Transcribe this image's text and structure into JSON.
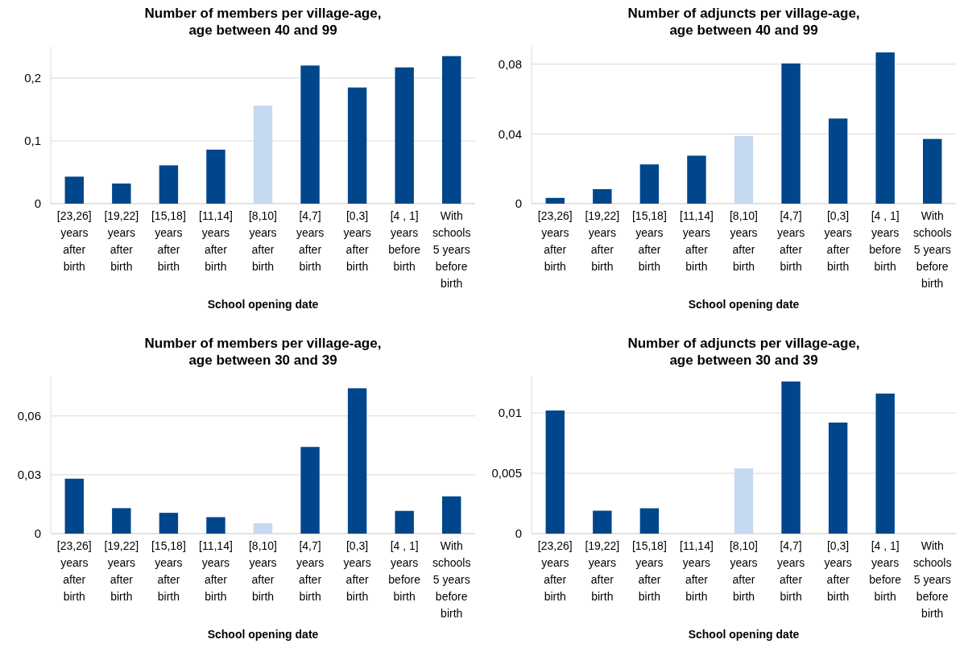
{
  "chart_data": [
    {
      "type": "bar",
      "title": "Number of members per village-age, age between 40 and 99",
      "xlabel": "School opening date",
      "categories": [
        "[23,26] years after birth",
        "[19,22] years after birth",
        "[15,18] years after birth",
        "[11,14] years after birth",
        "[8,10] years after birth",
        "[4,7] years after birth",
        "[0,3] years after birth",
        "[4 , 1] years before birth",
        "With schools 5 years before birth"
      ],
      "values": [
        0.043,
        0.032,
        0.061,
        0.086,
        0.156,
        0.22,
        0.185,
        0.217,
        0.235
      ],
      "colors": [
        "#00468b",
        "#00468b",
        "#00468b",
        "#00468b",
        "#c5d9f1",
        "#00468b",
        "#00468b",
        "#00468b",
        "#00468b"
      ],
      "ylim": [
        0,
        0.25
      ],
      "yticks": [
        {
          "value": 0,
          "label": "0"
        },
        {
          "value": 0.1,
          "label": "0,1"
        },
        {
          "value": 0.2,
          "label": "0,2"
        }
      ],
      "grid": "y"
    },
    {
      "type": "bar",
      "title": "Number of adjuncts per village-age, age between 40 and 99",
      "xlabel": "School opening date",
      "categories": [
        "[23,26] years after birth",
        "[19,22] years after birth",
        "[15,18] years after birth",
        "[11,14] years after birth",
        "[8,10] years after birth",
        "[4,7] years after birth",
        "[0,3] years after birth",
        "[4 , 1] years before birth",
        "With schools 5 years before birth"
      ],
      "values": [
        0.0033,
        0.0083,
        0.0225,
        0.0275,
        0.0388,
        0.0804,
        0.0488,
        0.0867,
        0.0371
      ],
      "colors": [
        "#00468b",
        "#00468b",
        "#00468b",
        "#00468b",
        "#c5d9f1",
        "#00468b",
        "#00468b",
        "#00468b",
        "#00468b"
      ],
      "ylim": [
        0,
        0.09
      ],
      "yticks": [
        {
          "value": 0,
          "label": "0"
        },
        {
          "value": 0.04,
          "label": "0,04"
        },
        {
          "value": 0.08,
          "label": "0,08"
        }
      ],
      "grid": "y"
    },
    {
      "type": "bar",
      "title": "Number of members per village-age, age between 30 and 39",
      "xlabel": "School opening date",
      "categories": [
        "[23,26] years after birth",
        "[19,22] years after birth",
        "[15,18] years after birth",
        "[11,14] years after birth",
        "[8,10] years after birth",
        "[4,7] years after birth",
        "[0,3] years after birth",
        "[4 , 1] years before birth",
        "With schools 5 years before birth"
      ],
      "values": [
        0.028,
        0.013,
        0.0106,
        0.0084,
        0.0053,
        0.0442,
        0.0741,
        0.0116,
        0.019
      ],
      "colors": [
        "#00468b",
        "#00468b",
        "#00468b",
        "#00468b",
        "#c5d9f1",
        "#00468b",
        "#00468b",
        "#00468b",
        "#00468b"
      ],
      "ylim": [
        0,
        0.08
      ],
      "yticks": [
        {
          "value": 0,
          "label": "0"
        },
        {
          "value": 0.03,
          "label": "0,03"
        },
        {
          "value": 0.06,
          "label": "0,06"
        }
      ],
      "grid": "y"
    },
    {
      "type": "bar",
      "title": "Number of adjuncts per village-age, age between 30 and 39",
      "xlabel": "School opening date",
      "categories": [
        "[23,26] years after birth",
        "[19,22] years after birth",
        "[15,18] years after birth",
        "[11,14] years after birth",
        "[8,10] years after birth",
        "[4,7] years after birth",
        "[0,3] years after birth",
        "[4 , 1] years before birth",
        "With schools 5 years before birth"
      ],
      "values": [
        0.0102,
        0.0019,
        0.0021,
        0,
        0.0054,
        0.0126,
        0.0092,
        0.0116,
        0
      ],
      "colors": [
        "#00468b",
        "#00468b",
        "#00468b",
        "#00468b",
        "#c5d9f1",
        "#00468b",
        "#00468b",
        "#00468b",
        "#00468b"
      ],
      "ylim": [
        0,
        0.013
      ],
      "yticks": [
        {
          "value": 0,
          "label": "0"
        },
        {
          "value": 0.005,
          "label": "0,005"
        },
        {
          "value": 0.01,
          "label": "0,01"
        }
      ],
      "grid": "y"
    }
  ]
}
